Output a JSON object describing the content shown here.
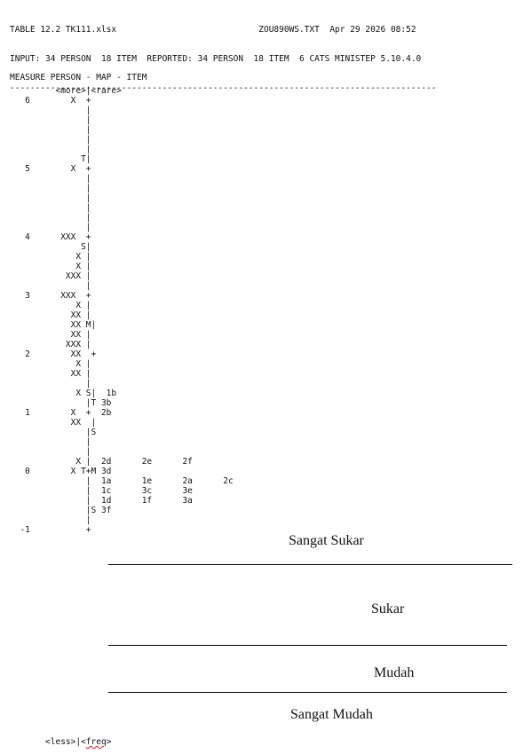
{
  "header": {
    "line1": "TABLE 12.2 TK111.xlsx                            ZOU890WS.TXT  Apr 29 2026 08:52",
    "line2": "INPUT: 34 PERSON  18 ITEM  REPORTED: 34 PERSON  18 ITEM  6 CATS MINISTEP 5.10.4.0",
    "rule": "------------------------------------------------------------------------------------"
  },
  "map": {
    "title": "MEASURE PERSON - MAP - ITEM",
    "lines": [
      "         <more>|<rare>",
      "   6        X  +",
      "               |",
      "               |",
      "               |",
      "               |",
      "               |",
      "              T|",
      "   5        X  +",
      "               |",
      "               |",
      "               |",
      "               |",
      "               |",
      "               |",
      "   4      XXX  +",
      "              S|",
      "             X |",
      "             X |",
      "           XXX |",
      "               |",
      "   3      XXX  +",
      "             X |",
      "            XX |",
      "            XX M|",
      "            XX |",
      "           XXX |",
      "   2        XX  +",
      "             X |",
      "            XX |",
      "               |",
      "             X S|  1b",
      "               |T 3b",
      "   1        X  +  2b",
      "            XX  |",
      "               |S",
      "               |",
      "               |",
      "             X |  2d      2e      2f",
      "   0        X T+M 3d",
      "               |  1a      1e      2a      2c",
      "               |  1c      3c      3e",
      "               |  1d      1f      3a",
      "               |S 3f",
      "               |",
      "  -1           +"
    ],
    "footer_less": "       <less>|<",
    "footer_freq": "freq",
    "footer_end": ">"
  },
  "zones": {
    "sangat_sukar": "Sangat Sukar",
    "sukar": "Sukar",
    "mudah": "Mudah",
    "sangat_mudah": "Sangat Mudah"
  }
}
